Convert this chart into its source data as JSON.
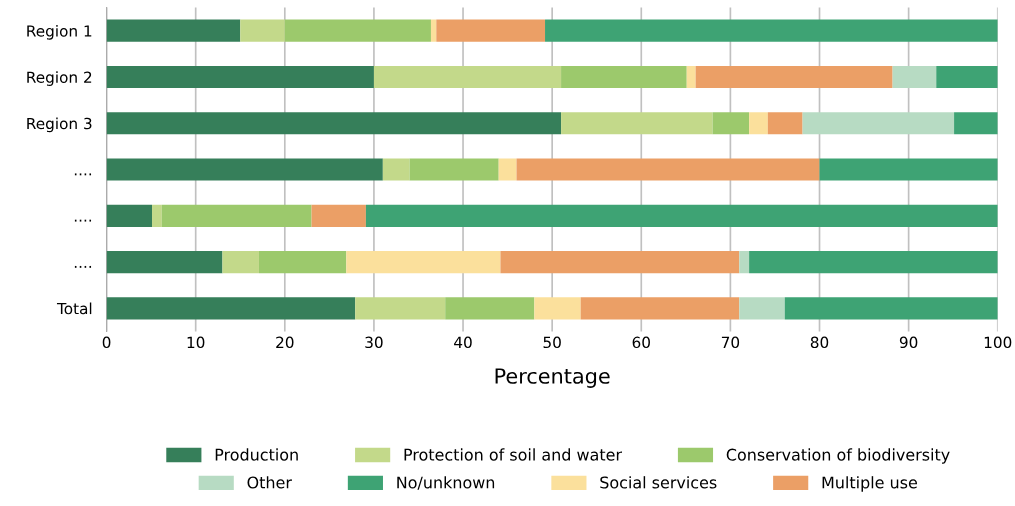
{
  "chart_data": {
    "type": "bar",
    "orientation": "horizontal",
    "stacked": true,
    "categories": [
      "Region 1",
      "Region 2",
      "Region 3",
      "....",
      "....",
      "....",
      "Total"
    ],
    "series": [
      {
        "name": "Production",
        "color": "#367f5a",
        "values": [
          15,
          30,
          51,
          31,
          5.1,
          13,
          27.9
        ]
      },
      {
        "name": "Protection of soil and water",
        "color": "#c3d98a",
        "values": [
          5,
          21,
          17,
          3,
          1.1,
          4.1,
          10.1
        ]
      },
      {
        "name": "Conservation of biodiversity",
        "color": "#9cc96c",
        "values": [
          16.4,
          14.1,
          4.1,
          10,
          16.8,
          9.8,
          10
        ]
      },
      {
        "name": "Social services",
        "color": "#fbe09c",
        "values": [
          0.6,
          1,
          2.1,
          2,
          0,
          17.3,
          5.2
        ]
      },
      {
        "name": "Multiple use",
        "color": "#eb9f66",
        "values": [
          12.2,
          22.1,
          3.9,
          34,
          6.1,
          26.8,
          17.8
        ]
      },
      {
        "name": "Other",
        "color": "#b7dbc3",
        "values": [
          0,
          4.9,
          17,
          0,
          0,
          1.1,
          5.1
        ]
      },
      {
        "name": "No/unknown",
        "color": "#3ea374",
        "values": [
          50.8,
          6.9,
          4.9,
          20,
          70.9,
          27.9,
          23.9
        ]
      }
    ],
    "xlabel": "Percentage",
    "xlim": [
      0,
      100
    ],
    "xticks": [
      0,
      10,
      20,
      30,
      40,
      50,
      60,
      70,
      80,
      90,
      100
    ],
    "grid": "x",
    "legend": "bottom"
  }
}
